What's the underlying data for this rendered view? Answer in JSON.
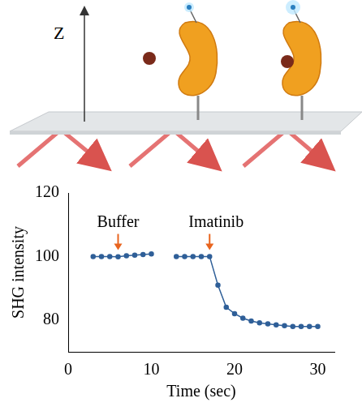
{
  "diagram": {
    "axis_label": "Z"
  },
  "chart_data": {
    "type": "line",
    "x_label": "Time (sec)",
    "y_label": "SHG intensity",
    "x": [
      3,
      4,
      5,
      6,
      7,
      8,
      9,
      10,
      11.5,
      13,
      14,
      15,
      16,
      17,
      18,
      19,
      20,
      21,
      22,
      23,
      24,
      25,
      26,
      27,
      28,
      29,
      30
    ],
    "series": [
      {
        "name": "SHG",
        "color": "#2f5f98",
        "marker": "circle",
        "line_style": "solid",
        "values": [
          100,
          100,
          100,
          99.9,
          100.2,
          100.4,
          100.6,
          100.8,
          null,
          100,
          100,
          100,
          100,
          100,
          91,
          84,
          82,
          80.6,
          79.7,
          79.1,
          78.8,
          78.5,
          78.2,
          78,
          78,
          78,
          78
        ]
      }
    ],
    "annotations": [
      {
        "text": "Buffer",
        "x": 6,
        "y": 102
      },
      {
        "text": "Imatinib",
        "x": 17,
        "y": 102
      }
    ],
    "xlim": [
      0,
      32
    ],
    "xticks": [
      0,
      10,
      20,
      30
    ],
    "ylim": [
      70,
      120
    ],
    "yticks": [
      80,
      100,
      120
    ],
    "grid": false
  }
}
